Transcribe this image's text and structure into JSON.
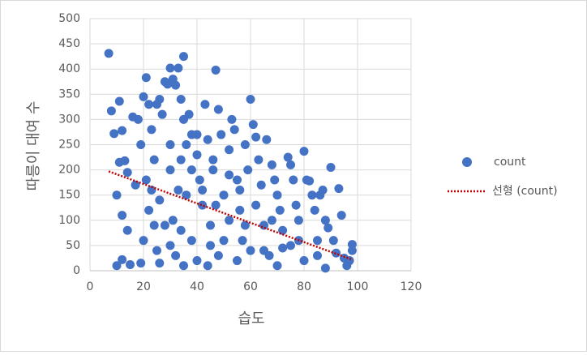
{
  "chart_data": {
    "type": "scatter",
    "x_label": "습도",
    "y_label": "따릉이 대여 수",
    "xlim": [
      0,
      120
    ],
    "xticks": [
      0,
      20,
      40,
      60,
      80,
      100,
      120
    ],
    "ylim": [
      0,
      500
    ],
    "yticks": [
      0,
      50,
      100,
      150,
      200,
      250,
      300,
      350,
      400,
      450,
      500
    ],
    "grid": true,
    "legend": "right",
    "series": [
      {
        "name": "count",
        "kind": "points",
        "color": "#4472c4",
        "x": [
          7,
          8,
          9,
          11,
          12,
          11,
          13,
          10,
          12,
          14,
          10,
          12,
          15,
          14,
          16,
          18,
          17,
          19,
          20,
          21,
          22,
          21,
          20,
          19,
          22,
          23,
          24,
          25,
          26,
          24,
          25,
          26,
          27,
          28,
          29,
          30,
          31,
          32,
          33,
          34,
          35,
          35,
          36,
          37,
          38,
          36,
          38,
          30,
          31,
          32,
          33,
          34,
          40,
          41,
          42,
          43,
          44,
          45,
          46,
          47,
          48,
          49,
          50,
          48,
          44,
          52,
          53,
          54,
          55,
          56,
          57,
          58,
          59,
          60,
          61,
          62,
          63,
          64,
          65,
          66,
          67,
          68,
          69,
          70,
          71,
          72,
          74,
          75,
          76,
          77,
          78,
          80,
          81,
          82,
          83,
          84,
          85,
          86,
          87,
          88,
          89,
          90,
          91,
          92,
          93,
          94,
          95,
          97,
          98,
          98,
          96,
          88,
          80,
          70,
          60,
          55,
          50,
          45,
          40,
          35,
          30,
          28,
          26,
          75,
          65,
          58,
          52,
          47,
          42,
          38,
          34,
          30,
          23,
          85,
          78,
          72,
          68,
          62,
          56,
          52,
          46,
          40
        ],
        "values": [
          431,
          317,
          272,
          336,
          278,
          215,
          218,
          150,
          110,
          80,
          10,
          22,
          12,
          195,
          305,
          300,
          170,
          250,
          345,
          383,
          330,
          180,
          60,
          15,
          120,
          280,
          220,
          330,
          340,
          90,
          40,
          15,
          310,
          375,
          370,
          402,
          380,
          368,
          402,
          340,
          425,
          300,
          250,
          310,
          270,
          150,
          60,
          200,
          100,
          30,
          160,
          80,
          230,
          180,
          130,
          330,
          260,
          90,
          200,
          398,
          320,
          270,
          150,
          30,
          10,
          240,
          300,
          280,
          180,
          120,
          60,
          250,
          200,
          340,
          290,
          265,
          220,
          170,
          90,
          260,
          30,
          210,
          180,
          150,
          120,
          80,
          225,
          210,
          180,
          130,
          100,
          237,
          180,
          178,
          150,
          120,
          60,
          150,
          160,
          100,
          85,
          205,
          60,
          35,
          163,
          110,
          25,
          20,
          52,
          40,
          10,
          5,
          20,
          10,
          40,
          20,
          60,
          50,
          20,
          10,
          50,
          90,
          140,
          50,
          40,
          90,
          100,
          130,
          160,
          200,
          220,
          250,
          160,
          30,
          60,
          45,
          100,
          130,
          160,
          190,
          220,
          270
        ]
      },
      {
        "name": "선형 (count)",
        "kind": "trendline",
        "color": "#c00000",
        "x": [
          7,
          98
        ],
        "values": [
          197,
          22
        ]
      }
    ]
  }
}
